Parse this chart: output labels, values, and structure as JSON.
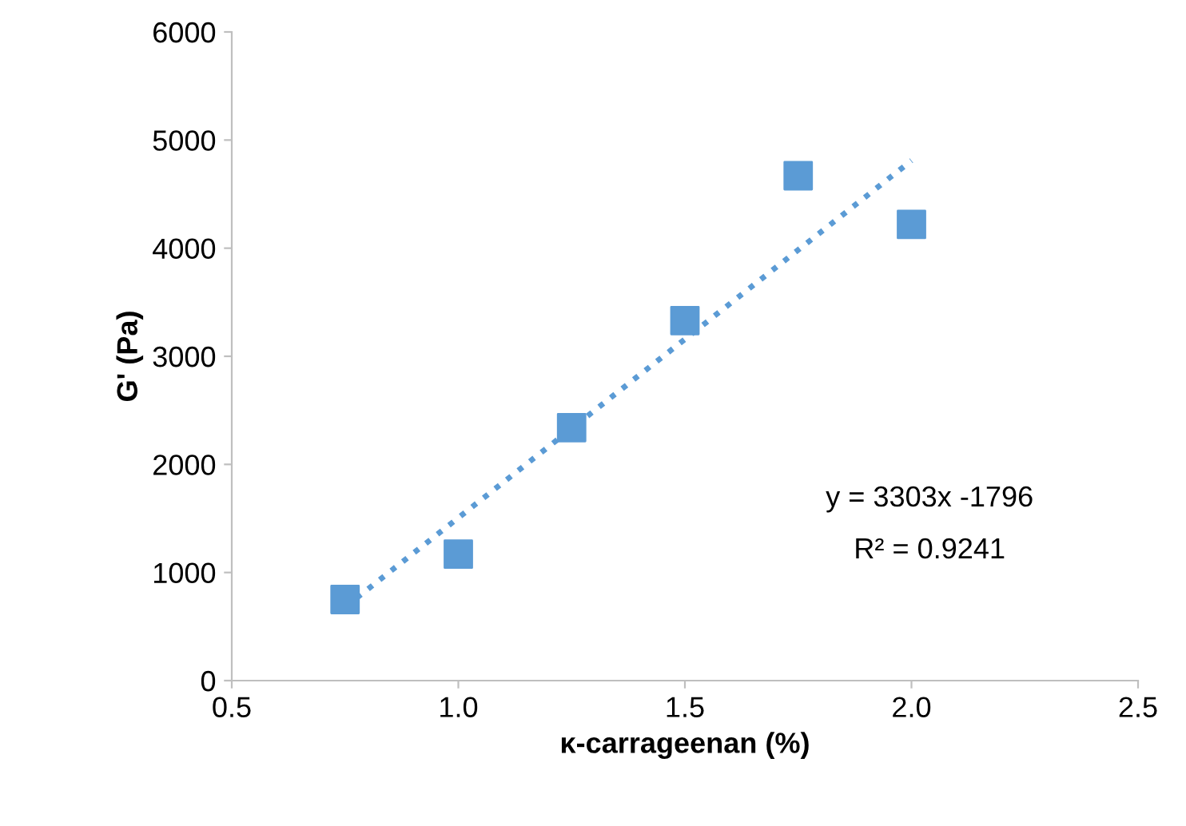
{
  "chart_data": {
    "type": "scatter",
    "xlabel": "κ-carrageenan (%)",
    "ylabel": "G' (Pa)",
    "xlim": [
      0.5,
      2.5
    ],
    "xticks": [
      {
        "value": 0.5,
        "label": "0.5"
      },
      {
        "value": 1.0,
        "label": "1.0"
      },
      {
        "value": 1.5,
        "label": "1.5"
      },
      {
        "value": 2.0,
        "label": "2.0"
      },
      {
        "value": 2.5,
        "label": "2.5"
      }
    ],
    "ylim": [
      0,
      6000
    ],
    "yticks": [
      0,
      1000,
      2000,
      3000,
      4000,
      5000,
      6000
    ],
    "grid": false,
    "legend": false,
    "series": [
      {
        "color": "#5b9bd5",
        "marker": "square",
        "x": [
          0.75,
          1.0,
          1.25,
          1.5,
          1.75,
          2.0
        ],
        "values": [
          750,
          1170,
          2340,
          3330,
          4670,
          4220
        ]
      },
      {
        "type": "line",
        "color": "#5b9bd5",
        "line_style": "dotted",
        "marker": "none",
        "x": [
          0.75,
          2.0
        ],
        "values": [
          680,
          4810
        ]
      }
    ],
    "annotations": [
      "y = 3303x -1796",
      "R² = 0.9241"
    ]
  }
}
